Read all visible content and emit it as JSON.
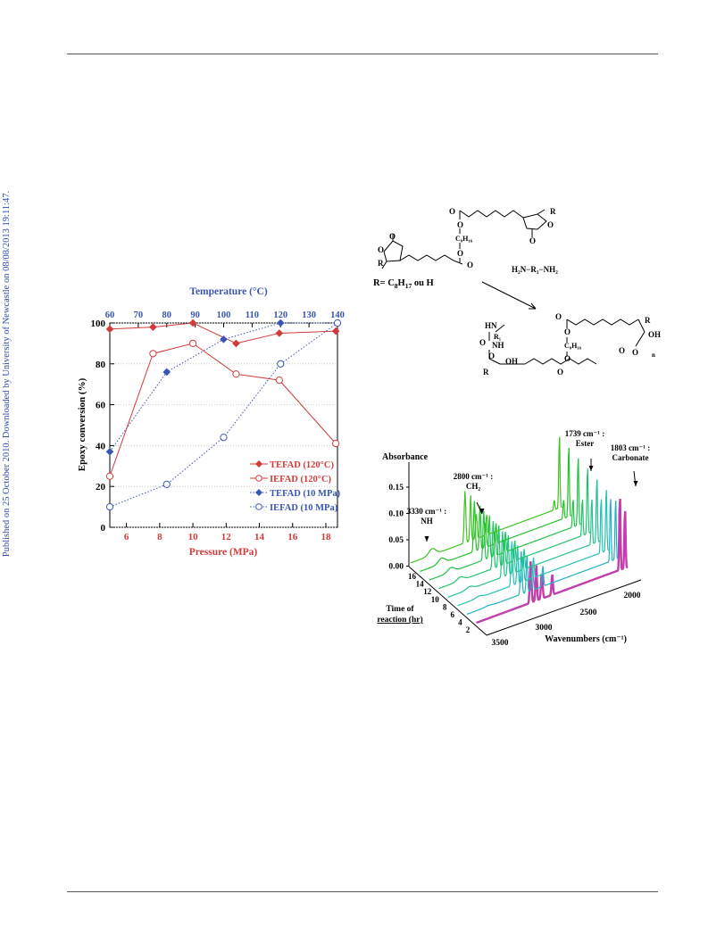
{
  "side_note": "Published on 25 October 2010. Downloaded by University of Newcastle on 08/08/2013 19:11:47.",
  "scheme": {
    "r_label_prefix": "R= C",
    "r_label_sub": "8",
    "r_label_mid": "H",
    "r_label_sub2": "17",
    "r_label_suffix": " ou H",
    "diamine": "H₂N−R₁−NH₂",
    "c8h16": "C₈H₁₆",
    "atom_o": "O",
    "atom_r": "R",
    "atom_hn": "HN",
    "atom_nh": "NH",
    "atom_oh": "OH",
    "atom_r1": "R₁",
    "atom_n": "n"
  },
  "chart_data": [
    {
      "type": "line",
      "title": "",
      "xlabel": "Pressure (MPa)",
      "x2label": "Temperature (°C)",
      "ylabel": "Epoxy conversion (%)",
      "xlim": [
        5,
        18.7
      ],
      "x2lim": [
        60,
        140
      ],
      "ylim": [
        0,
        100
      ],
      "x_ticks": [
        6,
        8,
        10,
        12,
        14,
        16,
        18
      ],
      "x2_ticks": [
        60,
        70,
        80,
        90,
        100,
        110,
        120,
        130,
        140
      ],
      "y_ticks": [
        0,
        20,
        40,
        60,
        80,
        100
      ],
      "legend_position": "bottom-right",
      "colors": {
        "red": "#d33b3b",
        "blue": "#3a56b4"
      },
      "series": [
        {
          "name": "TEFAD (120°C)",
          "axis": "pressure",
          "marker": "filled-diamond",
          "line": "solid",
          "color": "#d33b3b",
          "x": [
            5.0,
            7.6,
            10.0,
            12.6,
            15.2,
            18.6
          ],
          "y": [
            97,
            98,
            100,
            90,
            95,
            96
          ]
        },
        {
          "name": "IEFAD  (120°C)",
          "axis": "pressure",
          "marker": "open-circle",
          "line": "solid",
          "color": "#d33b3b",
          "x": [
            5.0,
            7.6,
            10.0,
            12.6,
            15.2,
            18.6
          ],
          "y": [
            25,
            85,
            90,
            75,
            72,
            41
          ]
        },
        {
          "name": "TEFAD (10 MPa)",
          "axis": "temperature",
          "marker": "filled-diamond",
          "line": "dotted",
          "color": "#3a56b4",
          "x": [
            60,
            80,
            100,
            120,
            140
          ],
          "y": [
            37,
            76,
            92,
            100,
            100
          ]
        },
        {
          "name": "IEFAD (10 MPa)",
          "axis": "temperature",
          "marker": "open-circle",
          "line": "dotted",
          "color": "#3a56b4",
          "x": [
            60,
            80,
            100,
            120,
            140
          ],
          "y": [
            10,
            21,
            44,
            80,
            100
          ]
        }
      ]
    },
    {
      "type": "line",
      "title": "",
      "ylabel": "Absorbance",
      "xlabel": "Wavenumbers (cm⁻¹)",
      "zlabel_line1": "Time of",
      "zlabel_line2": "reaction (hr)",
      "y_ticks": [
        "0.15",
        "0.10",
        "0.05",
        "0.00"
      ],
      "x_ticks": [
        "3500",
        "3000",
        "2500",
        "2000"
      ],
      "time_ticks": [
        "16",
        "14",
        "12",
        "10",
        "8",
        "6",
        "4",
        "2"
      ],
      "annotations": [
        {
          "l1": "1739 cm⁻¹ :",
          "l2": "Ester"
        },
        {
          "l1": "1803 cm⁻¹ :",
          "l2": "Carbonate"
        },
        {
          "l1": "2800 cm⁻¹ :",
          "l2": "CH₂"
        },
        {
          "l1": "3330 cm⁻¹ :",
          "l2": "NH"
        }
      ],
      "peaks": {
        "NH": 3330,
        "CH2": 2800,
        "Ester": 1739,
        "Carbonate": 1803
      }
    }
  ]
}
